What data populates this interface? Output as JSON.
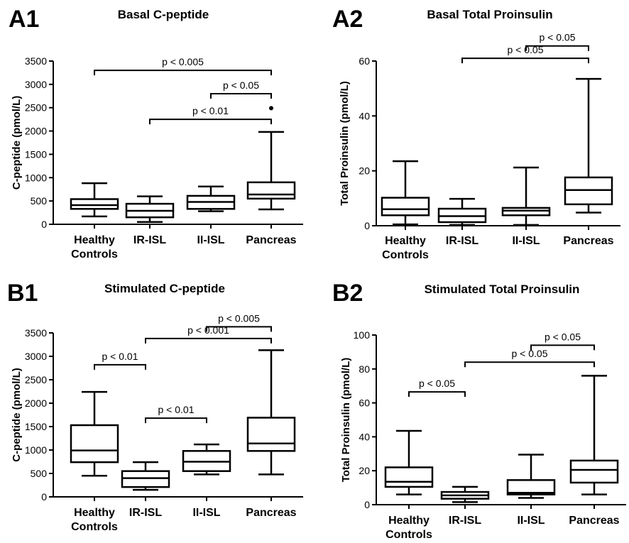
{
  "chart_data": [
    {
      "type": "box",
      "panel_label": "A1",
      "title": "Basal C-peptide",
      "ylabel": "C-peptide (pmol/L)",
      "ylim": [
        0,
        3500
      ],
      "yticks": [
        "0",
        "500",
        "1000",
        "1500",
        "2000",
        "2500",
        "3000",
        "3500"
      ],
      "categories": [
        [
          "Healthy",
          "Controls"
        ],
        [
          "IR-ISL"
        ],
        [
          "II-ISL"
        ],
        [
          "Pancreas"
        ]
      ],
      "boxes": [
        {
          "min": 170,
          "q1": 330,
          "median": 410,
          "q3": 540,
          "max": 880,
          "outliers": []
        },
        {
          "min": 50,
          "q1": 150,
          "median": 290,
          "q3": 440,
          "max": 600,
          "outliers": []
        },
        {
          "min": 280,
          "q1": 330,
          "median": 480,
          "q3": 610,
          "max": 810,
          "outliers": []
        },
        {
          "min": 320,
          "q1": 550,
          "median": 640,
          "q3": 900,
          "max": 1980,
          "outliers": [
            2490
          ]
        }
      ],
      "brackets": [
        {
          "from": 0,
          "to": 3,
          "y": 3300,
          "label": "p < 0.005"
        },
        {
          "from": 2,
          "to": 3,
          "y": 2800,
          "label": "p < 0.05"
        },
        {
          "from": 1,
          "to": 3,
          "y": 2250,
          "label": "p < 0.01"
        }
      ]
    },
    {
      "type": "box",
      "panel_label": "A2",
      "title": "Basal Total Proinsulin",
      "ylabel": "Total Proinsulin (pmol/L)",
      "ylim": [
        0,
        60
      ],
      "yticks": [
        "0",
        "20",
        "40",
        "60"
      ],
      "categories": [
        [
          "Healthy",
          "Controls"
        ],
        [
          "IR-ISL"
        ],
        [
          "II-ISL"
        ],
        [
          "Pancreas"
        ]
      ],
      "boxes": [
        {
          "min": 0.5,
          "q1": 3.8,
          "median": 6.0,
          "q3": 10.2,
          "max": 23.5,
          "outliers": []
        },
        {
          "min": 0.3,
          "q1": 1.3,
          "median": 3.5,
          "q3": 6.2,
          "max": 9.8,
          "outliers": []
        },
        {
          "min": 0.3,
          "q1": 3.8,
          "median": 5.5,
          "q3": 6.5,
          "max": 21.2,
          "outliers": []
        },
        {
          "min": 4.8,
          "q1": 7.8,
          "median": 13.0,
          "q3": 17.6,
          "max": 53.5,
          "outliers": []
        }
      ],
      "brackets": [
        {
          "from": 2,
          "to": 3,
          "y": 65.5,
          "label": "p < 0.05"
        },
        {
          "from": 1,
          "to": 3,
          "y": 61.0,
          "label": "p < 0.05"
        }
      ]
    },
    {
      "type": "box",
      "panel_label": "B1",
      "title": "Stimulated C-peptide",
      "ylabel": "C-peptide (pmol/L)",
      "ylim": [
        0,
        3500
      ],
      "yticks": [
        "0",
        "500",
        "1000",
        "1500",
        "2000",
        "2500",
        "3000",
        "3500"
      ],
      "categories": [
        [
          "Healthy",
          "Controls"
        ],
        [
          "IR-ISL"
        ],
        [
          "II-ISL"
        ],
        [
          "Pancreas"
        ]
      ],
      "boxes": [
        {
          "min": 450,
          "q1": 740,
          "median": 990,
          "q3": 1530,
          "max": 2240,
          "outliers": []
        },
        {
          "min": 150,
          "q1": 210,
          "median": 400,
          "q3": 550,
          "max": 740,
          "outliers": []
        },
        {
          "min": 480,
          "q1": 550,
          "median": 750,
          "q3": 980,
          "max": 1120,
          "outliers": []
        },
        {
          "min": 480,
          "q1": 980,
          "median": 1140,
          "q3": 1690,
          "max": 3130,
          "outliers": []
        }
      ],
      "brackets": [
        {
          "from": 0,
          "to": 1,
          "y": 2820,
          "label": "p < 0.01"
        },
        {
          "from": 1,
          "to": 3,
          "y": 3380,
          "label": "p < 0.001"
        },
        {
          "from": 2,
          "to": 3,
          "y": 3630,
          "label": "p < 0.005"
        },
        {
          "from": 1,
          "to": 2,
          "y": 1680,
          "label": "p < 0.01"
        }
      ]
    },
    {
      "type": "box",
      "panel_label": "B2",
      "title": "Stimulated Total Proinsulin",
      "ylabel": "Total Proinsulin (pmol/L)",
      "ylim": [
        0,
        100
      ],
      "yticks": [
        "0",
        "20",
        "40",
        "60",
        "80",
        "100"
      ],
      "categories": [
        [
          "Healthy",
          "Controls"
        ],
        [
          "IR-ISL"
        ],
        [
          "II-ISL"
        ],
        [
          "Pancreas"
        ]
      ],
      "boxes": [
        {
          "min": 6.0,
          "q1": 10.5,
          "median": 13.5,
          "q3": 22.0,
          "max": 43.5,
          "outliers": []
        },
        {
          "min": 1.5,
          "q1": 3.5,
          "median": 5.5,
          "q3": 7.5,
          "max": 10.5,
          "outliers": []
        },
        {
          "min": 4.0,
          "q1": 6.0,
          "median": 7.0,
          "q3": 14.5,
          "max": 29.5,
          "outliers": []
        },
        {
          "min": 6.0,
          "q1": 13.0,
          "median": 20.5,
          "q3": 26.0,
          "max": 76.0,
          "outliers": []
        }
      ],
      "brackets": [
        {
          "from": 0,
          "to": 1,
          "y": 66.5,
          "label": "p < 0.05"
        },
        {
          "from": 1,
          "to": 3,
          "y": 84.0,
          "label": "p < 0.05"
        },
        {
          "from": 2,
          "to": 3,
          "y": 94.0,
          "label": "p < 0.05"
        }
      ]
    }
  ]
}
